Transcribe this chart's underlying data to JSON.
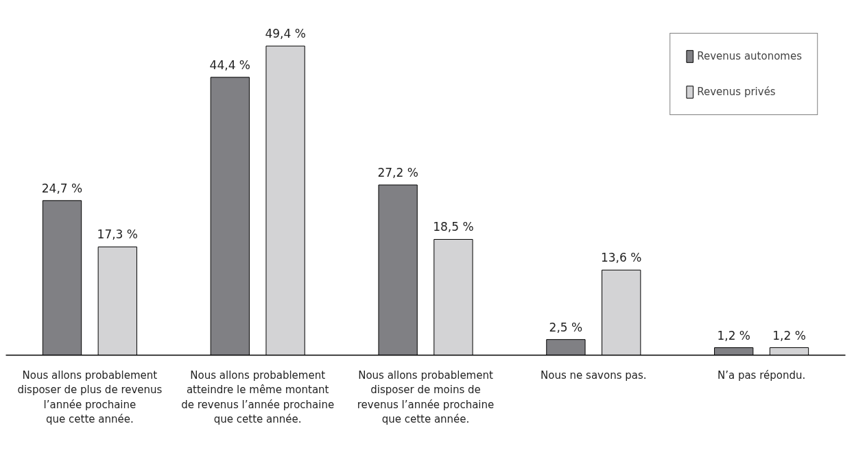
{
  "chart_data": {
    "type": "bar",
    "categories": [
      "Nous allons probablement\ndisposer de plus de revenus\nl’année prochaine\nque cette année.",
      "Nous allons probablement\natteindre le même montant\nde revenus l’année prochaine\nque cette année.",
      "Nous allons probablement\ndisposer de moins de\nrevenus l’année prochaine\nque cette année.",
      "Nous ne savons pas.",
      "N’a pas répondu."
    ],
    "series": [
      {
        "name": "Revenus autonomes",
        "color": "#808084",
        "values": [
          24.7,
          44.4,
          27.2,
          2.5,
          1.2
        ],
        "value_labels": [
          "24,7 %",
          "44,4 %",
          "27,2 %",
          "2,5 %",
          "1,2 %"
        ]
      },
      {
        "name": "Revenus privés",
        "color": "#d3d3d5",
        "values": [
          17.3,
          49.4,
          18.5,
          13.6,
          1.2
        ],
        "value_labels": [
          "17,3 %",
          "49,4 %",
          "18,5 %",
          "13,6 %",
          "1,2 %"
        ]
      }
    ],
    "legend": "top right",
    "grid": false,
    "tick_labels": "x"
  }
}
